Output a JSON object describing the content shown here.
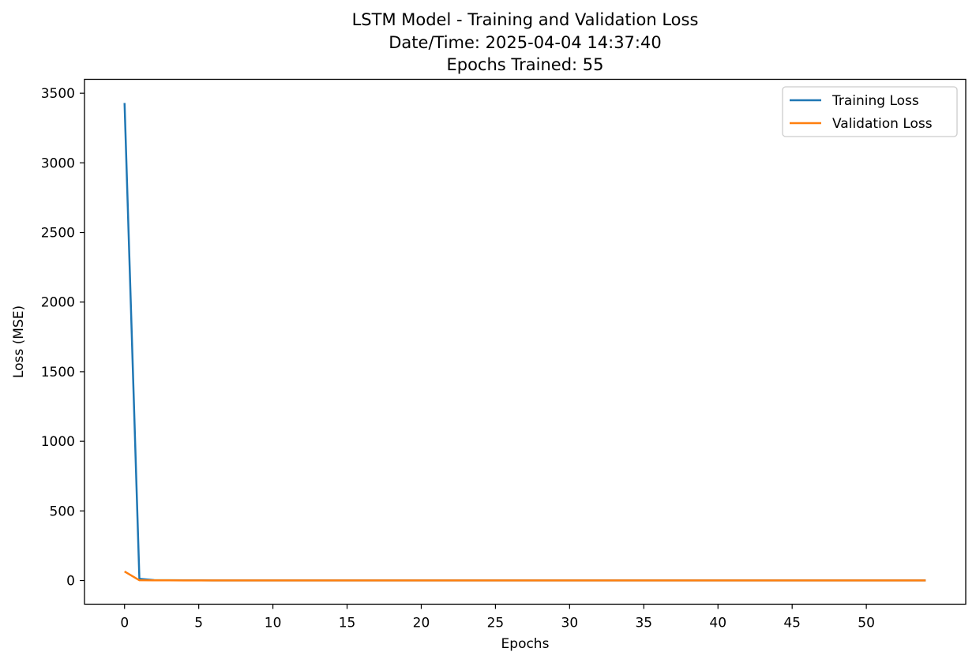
{
  "chart_data": {
    "type": "line",
    "title": "LSTM Model - Training and Validation Loss",
    "subtitle_lines": [
      "Date/Time: 2025-04-04 14:37:40",
      "Epochs Trained: 55"
    ],
    "xlabel": "Epochs",
    "ylabel": "Loss (MSE)",
    "xlim": [
      -2.7,
      56.7
    ],
    "ylim": [
      -170,
      3600
    ],
    "xticks": [
      0,
      5,
      10,
      15,
      20,
      25,
      30,
      35,
      40,
      45,
      50
    ],
    "yticks": [
      0,
      500,
      1000,
      1500,
      2000,
      2500,
      3000,
      3500
    ],
    "grid": false,
    "legend_position": "top-right",
    "x": [
      0,
      1,
      2,
      3,
      4,
      5,
      6,
      7,
      8,
      9,
      10,
      11,
      12,
      13,
      14,
      15,
      16,
      17,
      18,
      19,
      20,
      21,
      22,
      23,
      24,
      25,
      26,
      27,
      28,
      29,
      30,
      31,
      32,
      33,
      34,
      35,
      36,
      37,
      38,
      39,
      40,
      41,
      42,
      43,
      44,
      45,
      46,
      47,
      48,
      49,
      50,
      51,
      52,
      53,
      54
    ],
    "series": [
      {
        "name": "Training Loss",
        "color": "#1f77b4",
        "values": [
          3430,
          12,
          3,
          2,
          1.5,
          1.2,
          1,
          1,
          1,
          1,
          1,
          1,
          1,
          1,
          1,
          1,
          1,
          1,
          1,
          1,
          1,
          1,
          1,
          1,
          1,
          1,
          1,
          1,
          1,
          1,
          1,
          1,
          1,
          1,
          1,
          1,
          1,
          1,
          1,
          1,
          1,
          1,
          1,
          1,
          1,
          1,
          1,
          1,
          1,
          1,
          1,
          1,
          1,
          1,
          1
        ]
      },
      {
        "name": "Validation Loss",
        "color": "#ff7f0e",
        "values": [
          65,
          2,
          1.5,
          1.2,
          1,
          1,
          1,
          1,
          1,
          1,
          1,
          1,
          1,
          1,
          1,
          1,
          1,
          1,
          1,
          1,
          1,
          1,
          1,
          1,
          1,
          1,
          1,
          1,
          1,
          1,
          1,
          1,
          1,
          1,
          1,
          1,
          1,
          1,
          1,
          1,
          1,
          1,
          1,
          1,
          1,
          1,
          1,
          1,
          1,
          1,
          1,
          1,
          1,
          1,
          1
        ]
      }
    ]
  }
}
